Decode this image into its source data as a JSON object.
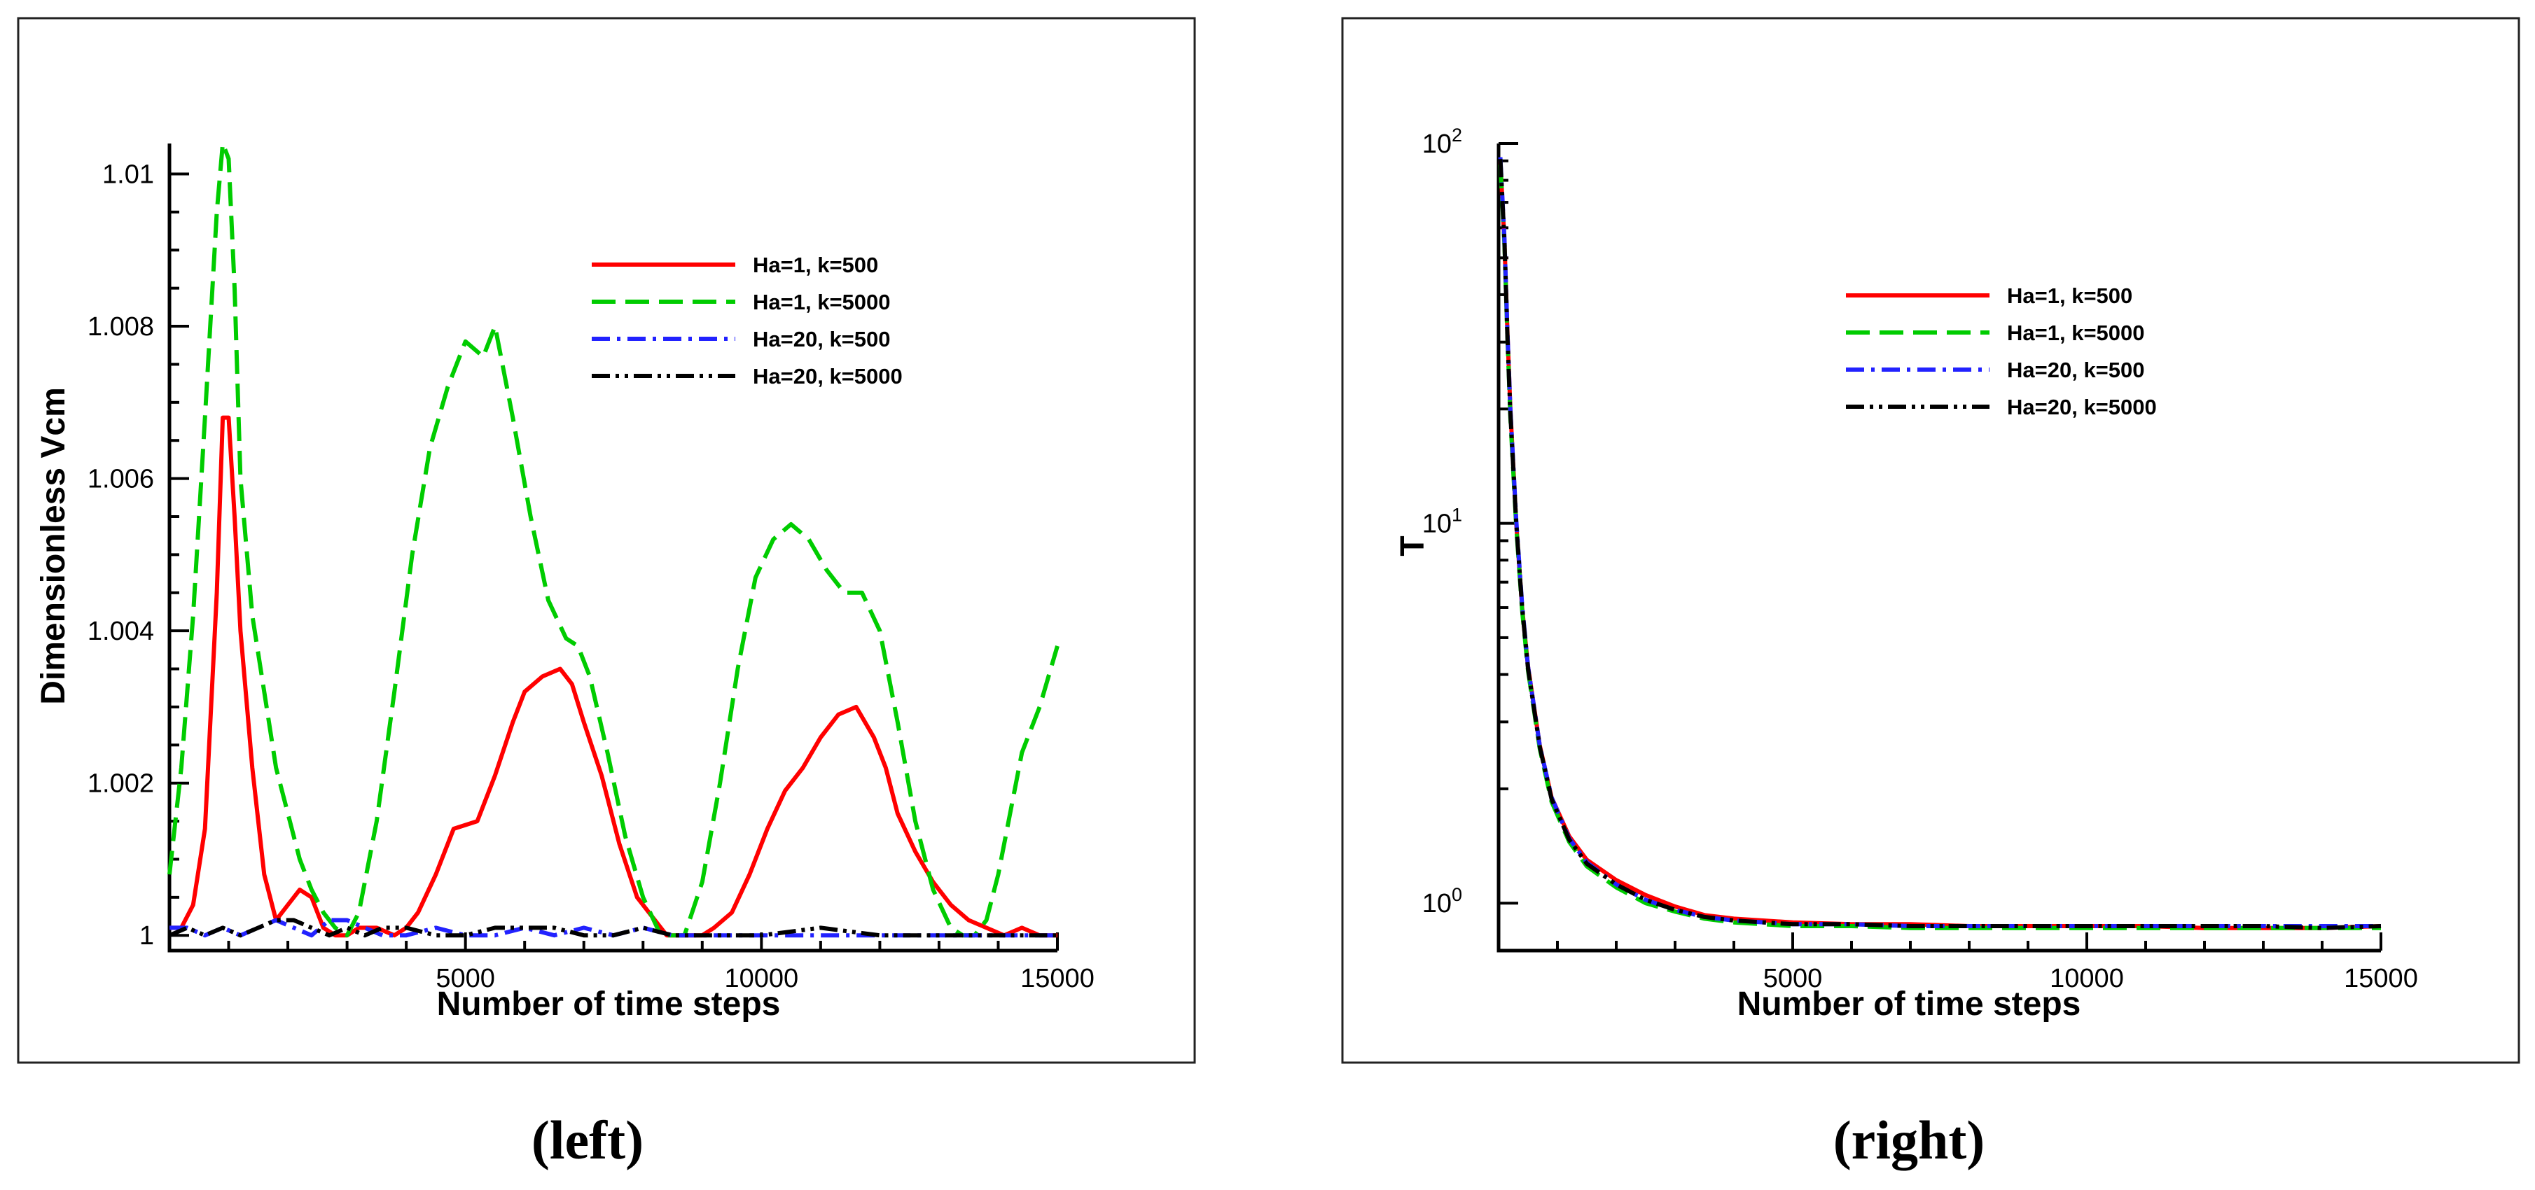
{
  "captions": {
    "left": "(left)",
    "right": "(right)"
  },
  "chart_data": [
    {
      "id": "left",
      "type": "line",
      "title": "",
      "xlabel": "Number of time steps",
      "ylabel": "Dimensionless Vcm",
      "xlim": [
        0,
        15000
      ],
      "ylim": [
        0.9998,
        1.0104
      ],
      "xticks": [
        5000,
        10000,
        15000
      ],
      "xtick_labels": [
        "5000",
        "10000",
        "15000"
      ],
      "yticks": [
        1.0,
        1.002,
        1.004,
        1.006,
        1.008,
        1.01
      ],
      "ytick_labels": [
        "1",
        "1.002",
        "1.004",
        "1.006",
        "1.008",
        "1.01"
      ],
      "yscale": "linear",
      "legend_position": "upper-right",
      "series": [
        {
          "name": "Ha=1, k=500",
          "color": "#ff0000",
          "style": "solid",
          "x": [
            0,
            200,
            400,
            600,
            800,
            900,
            1000,
            1100,
            1200,
            1400,
            1600,
            1800,
            2000,
            2200,
            2400,
            2600,
            2800,
            3000,
            3200,
            3500,
            3800,
            4000,
            4200,
            4500,
            4800,
            5200,
            5500,
            5800,
            6000,
            6300,
            6600,
            6800,
            7000,
            7300,
            7600,
            7900,
            8200,
            8400,
            8600,
            8800,
            9000,
            9200,
            9500,
            9800,
            10100,
            10400,
            10700,
            11000,
            11300,
            11600,
            11900,
            12100,
            12300,
            12600,
            12900,
            13200,
            13500,
            13800,
            14100,
            14400,
            14700,
            15000
          ],
          "y": [
            1.0001,
            1.0001,
            1.0004,
            1.0014,
            1.0045,
            1.0068,
            1.0068,
            1.0055,
            1.004,
            1.0022,
            1.0008,
            1.0002,
            1.0004,
            1.0006,
            1.0005,
            1.0001,
            1.0,
            1.0,
            1.0001,
            1.0001,
            1.0,
            1.0001,
            1.0003,
            1.0008,
            1.0014,
            1.0015,
            1.0021,
            1.0028,
            1.0032,
            1.0034,
            1.0035,
            1.0033,
            1.0028,
            1.0021,
            1.0012,
            1.0005,
            1.0002,
            1.0,
            1.0,
            1.0,
            1.0,
            1.0001,
            1.0003,
            1.0008,
            1.0014,
            1.0019,
            1.0022,
            1.0026,
            1.0029,
            1.003,
            1.0026,
            1.0022,
            1.0016,
            1.0011,
            1.0007,
            1.0004,
            1.0002,
            1.0001,
            1.0,
            1.0001,
            1.0,
            1.0
          ]
        },
        {
          "name": "Ha=1, k=5000",
          "color": "#00cc00",
          "style": "dashed",
          "x": [
            0,
            200,
            400,
            600,
            800,
            900,
            1000,
            1100,
            1200,
            1400,
            1600,
            1800,
            2000,
            2200,
            2400,
            2600,
            2800,
            3000,
            3200,
            3500,
            3800,
            4100,
            4400,
            4700,
            5000,
            5300,
            5500,
            5800,
            6100,
            6400,
            6700,
            6900,
            7100,
            7400,
            7700,
            8000,
            8300,
            8500,
            8700,
            9000,
            9300,
            9600,
            9900,
            10200,
            10500,
            10800,
            11100,
            11400,
            11700,
            12000,
            12300,
            12600,
            12900,
            13200,
            13400,
            13600,
            13800,
            14000,
            14200,
            14400,
            14700,
            15000
          ],
          "y": [
            1.0008,
            1.0022,
            1.0042,
            1.0068,
            1.0095,
            1.0104,
            1.0102,
            1.0085,
            1.006,
            1.0042,
            1.0032,
            1.0022,
            1.0016,
            1.001,
            1.0006,
            1.0003,
            1.0001,
            1.0,
            1.0003,
            1.0015,
            1.0032,
            1.005,
            1.0064,
            1.0072,
            1.0078,
            1.0076,
            1.008,
            1.0068,
            1.0055,
            1.0044,
            1.0039,
            1.0038,
            1.0034,
            1.0024,
            1.0013,
            1.0005,
            1.0,
            1.0,
            1.0,
            1.0007,
            1.002,
            1.0035,
            1.0047,
            1.0052,
            1.0054,
            1.0052,
            1.0048,
            1.0045,
            1.0045,
            1.004,
            1.0028,
            1.0015,
            1.0006,
            1.0001,
            1.0,
            1.0,
            1.0002,
            1.0008,
            1.0016,
            1.0024,
            1.003,
            1.0038
          ]
        },
        {
          "name": "Ha=20, k=500",
          "color": "#2222ff",
          "style": "dashdot",
          "x": [
            0,
            300,
            600,
            900,
            1200,
            1500,
            1800,
            2100,
            2400,
            2700,
            3000,
            3300,
            3600,
            4000,
            4500,
            5000,
            5500,
            6000,
            6500,
            7000,
            7500,
            8000,
            8500,
            9000,
            10000,
            11000,
            12000,
            13000,
            14000,
            15000
          ],
          "y": [
            1.0001,
            1.0001,
            1.0,
            1.0001,
            1.0,
            1.0001,
            1.0002,
            1.0001,
            1.0,
            1.0002,
            1.0002,
            1.0001,
            1.0,
            1.0,
            1.0001,
            1.0,
            1.0,
            1.0001,
            1.0,
            1.0001,
            1.0,
            1.0001,
            1.0,
            1.0,
            1.0,
            1.0,
            1.0,
            1.0,
            1.0,
            1.0
          ]
        },
        {
          "name": "Ha=20, k=5000",
          "color": "#000000",
          "style": "dashdotdot",
          "x": [
            0,
            300,
            600,
            900,
            1200,
            1500,
            1800,
            2100,
            2400,
            2700,
            3000,
            3300,
            3600,
            4000,
            4500,
            5000,
            5500,
            6000,
            6500,
            7000,
            7500,
            8000,
            8500,
            9000,
            10000,
            11000,
            12000,
            13000,
            14000,
            15000
          ],
          "y": [
            1.0,
            1.0001,
            1.0,
            1.0001,
            1.0,
            1.0001,
            1.0002,
            1.0002,
            1.0001,
            1.0,
            1.0001,
            1.0,
            1.0001,
            1.0001,
            1.0,
            1.0,
            1.0001,
            1.0001,
            1.0001,
            1.0,
            1.0,
            1.0001,
            1.0,
            1.0,
            1.0,
            1.0001,
            1.0,
            1.0,
            1.0,
            1.0
          ]
        }
      ]
    },
    {
      "id": "right",
      "type": "line",
      "title": "",
      "xlabel": "Number of time steps",
      "ylabel": "T",
      "xlim": [
        0,
        15000
      ],
      "ylim": [
        0.75,
        100
      ],
      "xticks": [
        5000,
        10000,
        15000
      ],
      "xtick_labels": [
        "5000",
        "10000",
        "15000"
      ],
      "yticks": [
        1,
        10,
        100
      ],
      "ytick_labels": [
        "10^0",
        "10^1",
        "10^2"
      ],
      "yscale": "log",
      "legend_position": "upper-right",
      "series": [
        {
          "name": "Ha=1, k=500",
          "color": "#ff0000",
          "style": "solid",
          "x": [
            30,
            100,
            150,
            200,
            300,
            400,
            500,
            700,
            900,
            1200,
            1500,
            2000,
            2500,
            3000,
            3500,
            4000,
            5000,
            6000,
            7000,
            8000,
            9000,
            10000,
            11000,
            12000,
            13000,
            14000,
            15000
          ],
          "y": [
            90,
            55,
            32,
            20,
            10,
            6,
            4.2,
            2.6,
            1.9,
            1.5,
            1.3,
            1.15,
            1.05,
            0.98,
            0.93,
            0.91,
            0.89,
            0.88,
            0.88,
            0.87,
            0.87,
            0.87,
            0.87,
            0.86,
            0.86,
            0.86,
            0.87
          ]
        },
        {
          "name": "Ha=1, k=5000",
          "color": "#00cc00",
          "style": "dashed",
          "x": [
            30,
            100,
            150,
            200,
            300,
            400,
            500,
            700,
            900,
            1200,
            1500,
            2000,
            2500,
            3000,
            3500,
            4000,
            5000,
            6000,
            7000,
            8000,
            9000,
            10000,
            11000,
            12000,
            13000,
            14000,
            15000
          ],
          "y": [
            88,
            54,
            31,
            19,
            9.8,
            5.9,
            4.1,
            2.55,
            1.85,
            1.45,
            1.25,
            1.1,
            1.0,
            0.95,
            0.91,
            0.89,
            0.87,
            0.87,
            0.86,
            0.86,
            0.86,
            0.86,
            0.86,
            0.86,
            0.86,
            0.86,
            0.86
          ]
        },
        {
          "name": "Ha=20, k=500",
          "color": "#2222ff",
          "style": "dashdot",
          "x": [
            30,
            100,
            150,
            200,
            300,
            400,
            500,
            700,
            900,
            1200,
            1500,
            2000,
            2500,
            3000,
            3500,
            4000,
            5000,
            6000,
            7000,
            8000,
            9000,
            10000,
            11000,
            12000,
            13000,
            14000,
            15000
          ],
          "y": [
            92,
            56,
            32,
            20,
            10.2,
            6.1,
            4.2,
            2.6,
            1.9,
            1.48,
            1.28,
            1.12,
            1.02,
            0.96,
            0.92,
            0.9,
            0.88,
            0.88,
            0.87,
            0.87,
            0.87,
            0.87,
            0.87,
            0.87,
            0.87,
            0.87,
            0.87
          ]
        },
        {
          "name": "Ha=20, k=5000",
          "color": "#000000",
          "style": "dashdotdot",
          "x": [
            30,
            100,
            150,
            200,
            300,
            400,
            500,
            700,
            900,
            1200,
            1500,
            2000,
            2500,
            3000,
            3500,
            4000,
            5000,
            6000,
            7000,
            8000,
            9000,
            10000,
            11000,
            12000,
            13000,
            14000,
            15000
          ],
          "y": [
            91,
            55,
            31,
            19.5,
            10,
            6,
            4.15,
            2.58,
            1.88,
            1.47,
            1.27,
            1.12,
            1.02,
            0.96,
            0.92,
            0.9,
            0.88,
            0.88,
            0.87,
            0.87,
            0.87,
            0.87,
            0.87,
            0.87,
            0.87,
            0.86,
            0.87
          ]
        }
      ]
    }
  ]
}
